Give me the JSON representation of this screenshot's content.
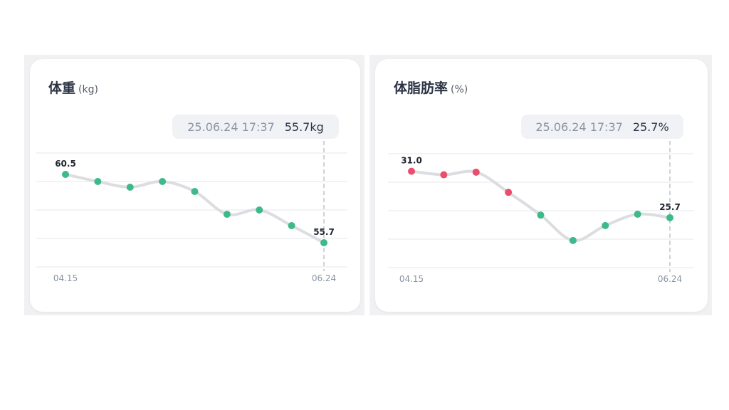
{
  "chart_data": [
    {
      "type": "line",
      "title": "体重",
      "unit": "(kg)",
      "x_tick_labels": [
        "04.15",
        "06.24"
      ],
      "values": [
        60.5,
        60.0,
        59.6,
        60.0,
        59.3,
        57.7,
        58.0,
        56.9,
        55.7
      ],
      "point_colors": [
        "#3db98a",
        "#3db98a",
        "#3db98a",
        "#3db98a",
        "#3db98a",
        "#3db98a",
        "#3db98a",
        "#3db98a",
        "#3db98a"
      ],
      "data_labels": [
        {
          "index": 0,
          "text": "60.5"
        },
        {
          "index": 8,
          "text": "55.7"
        }
      ],
      "ylim": [
        54,
        62
      ],
      "gridlines": 5,
      "tooltip": {
        "date": "25.06.24 17:37",
        "value": "55.7kg",
        "index": 8
      }
    },
    {
      "type": "line",
      "title": "体脂肪率",
      "unit": "(%)",
      "x_tick_labels": [
        "04.15",
        "06.24"
      ],
      "values": [
        31.0,
        30.6,
        30.9,
        28.6,
        26.0,
        23.1,
        24.8,
        26.1,
        25.7
      ],
      "point_colors": [
        "#e94e6d",
        "#e94e6d",
        "#e94e6d",
        "#e94e6d",
        "#3db98a",
        "#3db98a",
        "#3db98a",
        "#3db98a",
        "#3db98a"
      ],
      "data_labels": [
        {
          "index": 0,
          "text": "31.0"
        },
        {
          "index": 8,
          "text": "25.7"
        }
      ],
      "ylim": [
        20,
        33
      ],
      "gridlines": 5,
      "tooltip": {
        "date": "25.06.24 17:37",
        "value": "25.7%",
        "index": 8
      }
    }
  ]
}
